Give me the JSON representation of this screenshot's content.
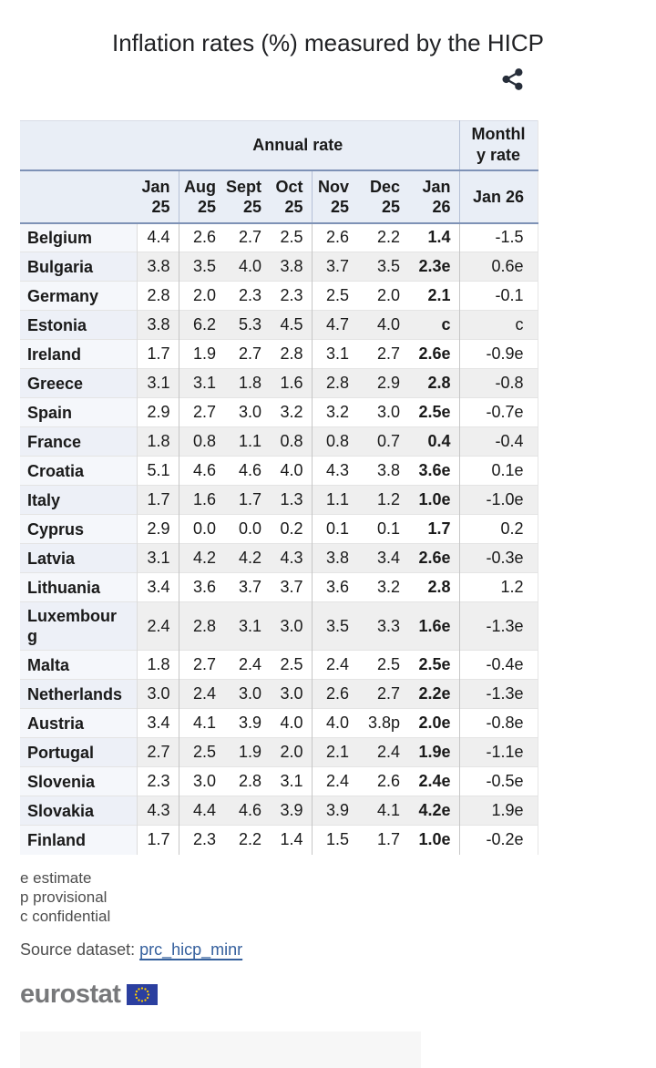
{
  "title": "Inflation rates (%) measured by the HICP",
  "icons": {
    "share": "share-icon",
    "eu_flag": "eu-flag-icon"
  },
  "colors": {
    "header_bg": "#e9eef6",
    "header_border_blue": "#7e92b6",
    "stripe_grey": "#efefef",
    "country_col_bg": "#f5f7fb",
    "link_blue": "#35609d",
    "eurostat_grey": "#77787a",
    "eu_flag_blue": "#2b3f9f",
    "eu_flag_stars": "#ffcc00"
  },
  "table": {
    "group_headers": {
      "annual": "Annual rate",
      "monthly": "Monthly rate"
    },
    "columns": [
      "Jan 25",
      "Aug 25",
      "Sept 25",
      "Oct 25",
      "Nov 25",
      "Dec 25",
      "Jan 26"
    ],
    "monthly_column": "Jan 26",
    "rows": [
      {
        "country": "Belgium",
        "annual": [
          "4.4",
          "2.6",
          "2.7",
          "2.5",
          "2.6",
          "2.2"
        ],
        "jan26": "1.4",
        "monthly": "-1.5"
      },
      {
        "country": "Bulgaria",
        "annual": [
          "3.8",
          "3.5",
          "4.0",
          "3.8",
          "3.7",
          "3.5"
        ],
        "jan26": "2.3e",
        "monthly": "0.6e"
      },
      {
        "country": "Germany",
        "annual": [
          "2.8",
          "2.0",
          "2.3",
          "2.3",
          "2.5",
          "2.0"
        ],
        "jan26": "2.1",
        "monthly": "-0.1"
      },
      {
        "country": "Estonia",
        "annual": [
          "3.8",
          "6.2",
          "5.3",
          "4.5",
          "4.7",
          "4.0"
        ],
        "jan26": "c",
        "monthly": "c"
      },
      {
        "country": "Ireland",
        "annual": [
          "1.7",
          "1.9",
          "2.7",
          "2.8",
          "3.1",
          "2.7"
        ],
        "jan26": "2.6e",
        "monthly": "-0.9e"
      },
      {
        "country": "Greece",
        "annual": [
          "3.1",
          "3.1",
          "1.8",
          "1.6",
          "2.8",
          "2.9"
        ],
        "jan26": "2.8",
        "monthly": "-0.8"
      },
      {
        "country": "Spain",
        "annual": [
          "2.9",
          "2.7",
          "3.0",
          "3.2",
          "3.2",
          "3.0"
        ],
        "jan26": "2.5e",
        "monthly": "-0.7e"
      },
      {
        "country": "France",
        "annual": [
          "1.8",
          "0.8",
          "1.1",
          "0.8",
          "0.8",
          "0.7"
        ],
        "jan26": "0.4",
        "monthly": "-0.4"
      },
      {
        "country": "Croatia",
        "annual": [
          "5.1",
          "4.6",
          "4.6",
          "4.0",
          "4.3",
          "3.8"
        ],
        "jan26": "3.6e",
        "monthly": "0.1e"
      },
      {
        "country": "Italy",
        "annual": [
          "1.7",
          "1.6",
          "1.7",
          "1.3",
          "1.1",
          "1.2"
        ],
        "jan26": "1.0e",
        "monthly": "-1.0e"
      },
      {
        "country": "Cyprus",
        "annual": [
          "2.9",
          "0.0",
          "0.0",
          "0.2",
          "0.1",
          "0.1"
        ],
        "jan26": "1.7",
        "monthly": "0.2"
      },
      {
        "country": "Latvia",
        "annual": [
          "3.1",
          "4.2",
          "4.2",
          "4.3",
          "3.8",
          "3.4"
        ],
        "jan26": "2.6e",
        "monthly": "-0.3e"
      },
      {
        "country": "Lithuania",
        "annual": [
          "3.4",
          "3.6",
          "3.7",
          "3.7",
          "3.6",
          "3.2"
        ],
        "jan26": "2.8",
        "monthly": "1.2"
      },
      {
        "country": "Luxembourg",
        "annual": [
          "2.4",
          "2.8",
          "3.1",
          "3.0",
          "3.5",
          "3.3"
        ],
        "jan26": "1.6e",
        "monthly": "-1.3e"
      },
      {
        "country": "Malta",
        "annual": [
          "1.8",
          "2.7",
          "2.4",
          "2.5",
          "2.4",
          "2.5"
        ],
        "jan26": "2.5e",
        "monthly": "-0.4e"
      },
      {
        "country": "Netherlands",
        "annual": [
          "3.0",
          "2.4",
          "3.0",
          "3.0",
          "2.6",
          "2.7"
        ],
        "jan26": "2.2e",
        "monthly": "-1.3e"
      },
      {
        "country": "Austria",
        "annual": [
          "3.4",
          "4.1",
          "3.9",
          "4.0",
          "4.0",
          "3.8p"
        ],
        "jan26": "2.0e",
        "monthly": "-0.8e"
      },
      {
        "country": "Portugal",
        "annual": [
          "2.7",
          "2.5",
          "1.9",
          "2.0",
          "2.1",
          "2.4"
        ],
        "jan26": "1.9e",
        "monthly": "-1.1e"
      },
      {
        "country": "Slovenia",
        "annual": [
          "2.3",
          "3.0",
          "2.8",
          "3.1",
          "2.4",
          "2.6"
        ],
        "jan26": "2.4e",
        "monthly": "-0.5e"
      },
      {
        "country": "Slovakia",
        "annual": [
          "4.3",
          "4.4",
          "4.6",
          "3.9",
          "3.9",
          "4.1"
        ],
        "jan26": "4.2e",
        "monthly": "1.9e"
      },
      {
        "country": "Finland",
        "annual": [
          "1.7",
          "2.3",
          "2.2",
          "1.4",
          "1.5",
          "1.7"
        ],
        "jan26": "1.0e",
        "monthly": "-0.2e"
      }
    ]
  },
  "footnotes": [
    "e estimate",
    "p provisional",
    "c confidential"
  ],
  "source": {
    "label": "Source dataset:",
    "link": "prc_hicp_minr"
  },
  "logo": {
    "text": "eurostat"
  }
}
